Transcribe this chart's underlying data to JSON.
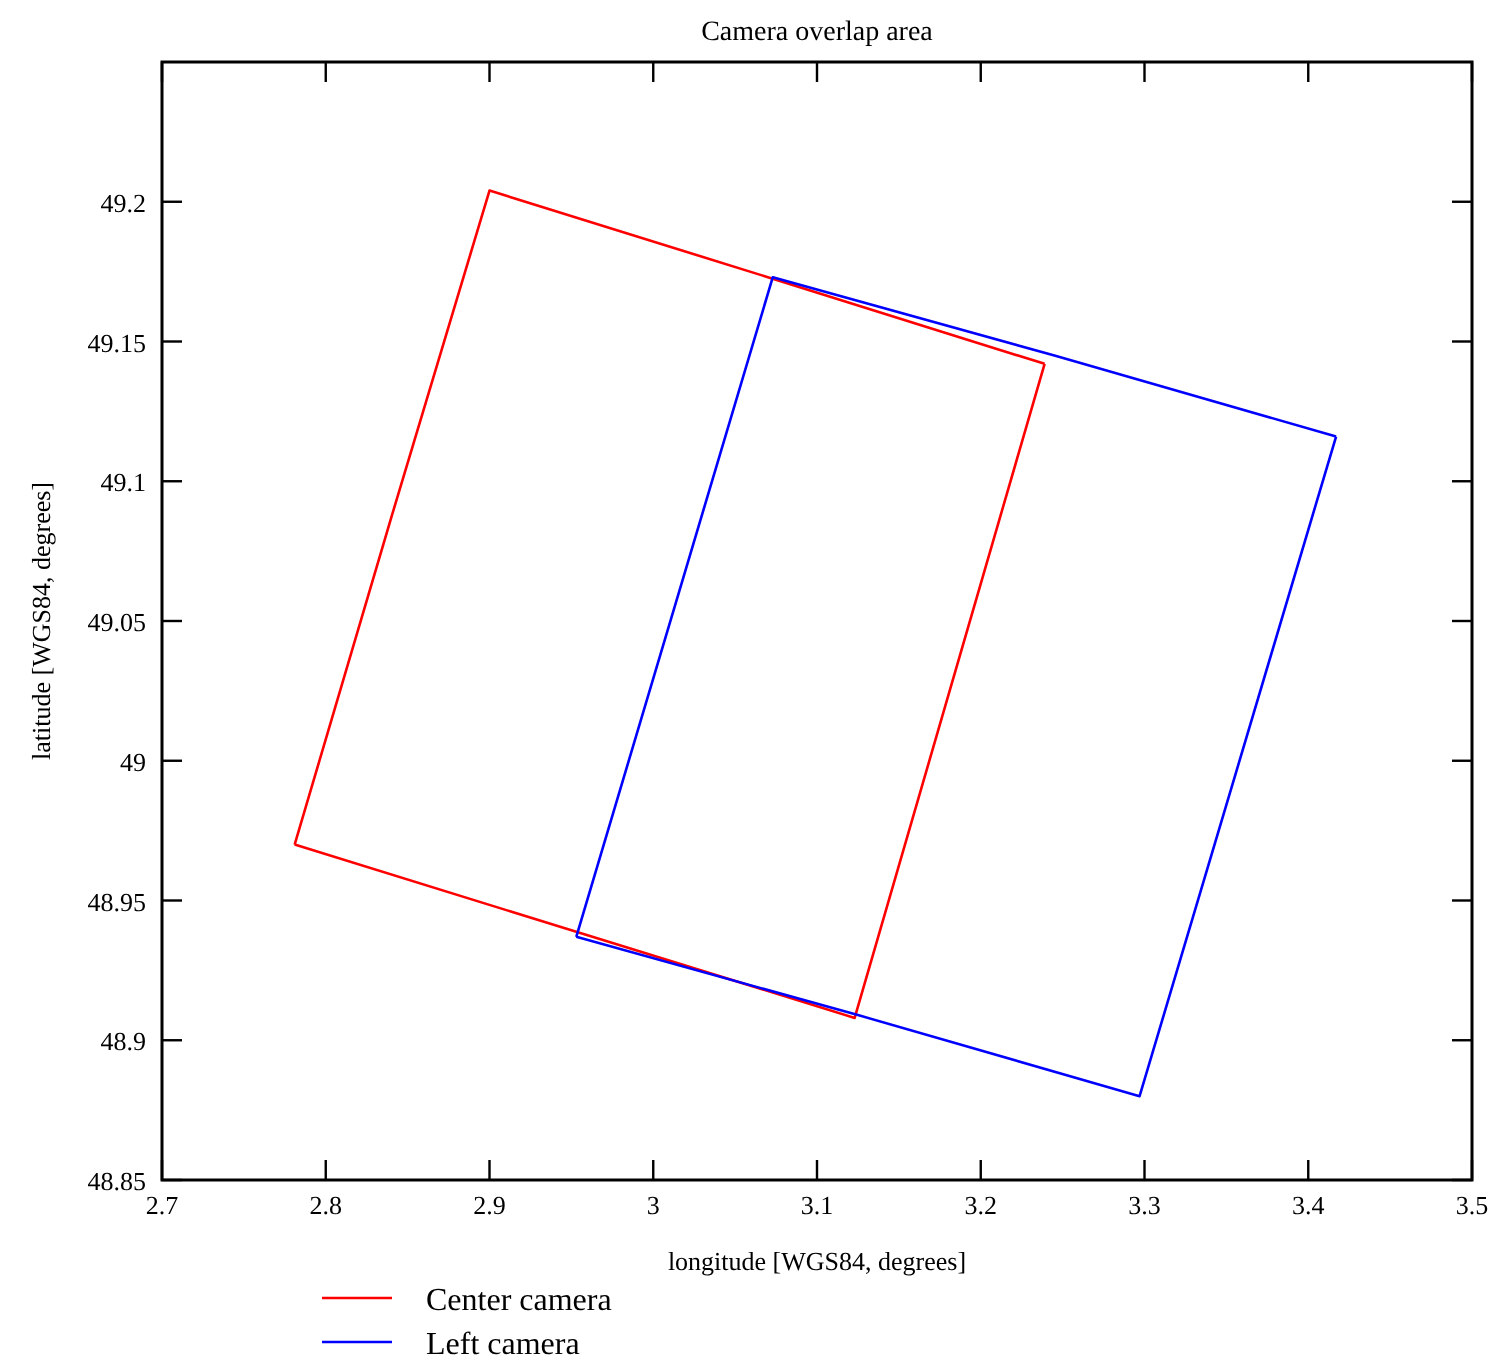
{
  "chart_data": {
    "type": "line",
    "title": "Camera overlap area",
    "xlabel": "longitude [WGS84, degrees]",
    "ylabel": "latitude [WGS84, degrees]",
    "xlim": [
      2.7,
      3.5
    ],
    "xticks": [
      2.7,
      2.8,
      2.9,
      3,
      3.1,
      3.2,
      3.3,
      3.4,
      3.5
    ],
    "ylim": [
      48.85,
      49.25
    ],
    "yticks": [
      48.85,
      48.9,
      48.95,
      49,
      49.05,
      49.1,
      49.15,
      49.2
    ],
    "grid": false,
    "legend": "bottom left",
    "marker": "none",
    "line_style": "solid",
    "series": [
      {
        "name": "Center camera",
        "color": "#ff0000",
        "x": [
          2.781,
          2.84,
          2.9,
          3.07,
          3.239
        ],
        "values": [
          48.97,
          49.087,
          49.204,
          49.173,
          49.142
        ]
      },
      {
        "color": "#ff0000",
        "x": [
          2.781,
          2.952,
          3.123,
          3.181,
          3.239
        ],
        "values": [
          48.97,
          48.939,
          48.908,
          49.025,
          49.142
        ]
      },
      {
        "name": "Left camera",
        "color": "#0000ff",
        "x": [
          2.953,
          3.013,
          3.073,
          3.245,
          3.417
        ],
        "values": [
          48.937,
          49.055,
          49.173,
          49.145,
          49.116
        ]
      },
      {
        "color": "#0000ff",
        "x": [
          2.953,
          3.125,
          3.297,
          3.357,
          3.417
        ],
        "values": [
          48.937,
          48.909,
          48.88,
          48.998,
          49.116
        ]
      }
    ]
  }
}
